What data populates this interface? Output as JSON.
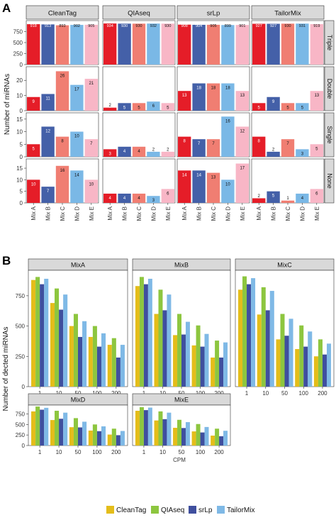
{
  "chart_data": [
    {
      "type": "bar",
      "panel_label": "A",
      "ylabel": "Number of miRNAs",
      "methods": [
        "CleanTag",
        "QIAseq",
        "srLp",
        "TailorMix"
      ],
      "rows": [
        "Triple",
        "Double",
        "Single",
        "None"
      ],
      "categories": [
        "Mix A",
        "Mix B",
        "Mix C",
        "Mix D",
        "Mix E"
      ],
      "category_colors": [
        "#e51d28",
        "#4460a8",
        "#f07e72",
        "#7ab8e6",
        "#f8b6c6"
      ],
      "yticks": {
        "Triple": [
          "0",
          "250",
          "500",
          "750"
        ],
        "Double": [
          "0",
          "10",
          "20"
        ],
        "Single": [
          "0",
          "5",
          "10",
          "15"
        ],
        "None": [
          "0",
          "5",
          "10",
          "15"
        ]
      },
      "ylim": {
        "Triple": [
          0,
          1000
        ],
        "Double": [
          0,
          29
        ],
        "Single": [
          0,
          17.5
        ],
        "None": [
          0,
          19
        ]
      },
      "values": {
        "Triple": {
          "CleanTag": [
            918,
            913,
            893,
            902,
            905
          ],
          "QIAseq": [
            934,
            930,
            930,
            932,
            930
          ],
          "srLp": [
            908,
            904,
            905,
            899,
            901
          ],
          "TailorMix": [
            927,
            927,
            930,
            931,
            919
          ]
        },
        "Double": {
          "CleanTag": [
            9,
            11,
            26,
            17,
            21
          ],
          "QIAseq": [
            2,
            5,
            5,
            6,
            5
          ],
          "srLp": [
            13,
            18,
            18,
            18,
            13
          ],
          "TailorMix": [
            5,
            9,
            5,
            5,
            13
          ]
        },
        "Single": {
          "CleanTag": [
            5,
            12,
            8,
            10,
            7
          ],
          "QIAseq": [
            3,
            4,
            4,
            2,
            2
          ],
          "srLp": [
            8,
            7,
            7,
            16,
            12
          ],
          "TailorMix": [
            8,
            2,
            7,
            3,
            5
          ]
        },
        "None": {
          "CleanTag": [
            10,
            7,
            16,
            14,
            10
          ],
          "QIAseq": [
            4,
            4,
            4,
            3,
            6
          ],
          "srLp": [
            14,
            14,
            13,
            10,
            17
          ],
          "TailorMix": [
            2,
            5,
            1,
            4,
            6
          ]
        }
      }
    },
    {
      "type": "bar",
      "panel_label": "B",
      "ylabel": "Number of dected miRNAs",
      "xlabel": "CPM",
      "mixes": [
        "MixA",
        "MixB",
        "MixC",
        "MixD",
        "MixE"
      ],
      "categories": [
        "1",
        "10",
        "50",
        "100",
        "200"
      ],
      "yticks": [
        "0",
        "250",
        "500",
        "750"
      ],
      "ylim": [
        0,
        960
      ],
      "legend_position": "bottom",
      "series": [
        {
          "name": "CleanTag",
          "color": "#e4bd1a",
          "values": {
            "MixA": [
              880,
              690,
              500,
              410,
              345
            ],
            "MixB": [
              830,
              600,
              425,
              340,
              240
            ],
            "MixC": [
              800,
              595,
              390,
              310,
              250
            ],
            "MixD": [
              810,
              605,
              435,
              355,
              260
            ],
            "MixE": [
              825,
              595,
              420,
              335,
              235
            ]
          }
        },
        {
          "name": "QIAseq",
          "color": "#8dc63f",
          "values": {
            "MixA": [
              905,
              810,
              600,
              500,
              400
            ],
            "MixB": [
              905,
              800,
              600,
              505,
              380
            ],
            "MixC": [
              910,
              820,
              600,
              505,
              390
            ],
            "MixD": [
              925,
              825,
              650,
              500,
              400
            ],
            "MixE": [
              910,
              810,
              610,
              510,
              400
            ]
          }
        },
        {
          "name": "srLp",
          "color": "#3f4f9e",
          "values": {
            "MixA": [
              845,
              635,
              410,
              330,
              240
            ],
            "MixB": [
              845,
              630,
              430,
              330,
              240
            ],
            "MixC": [
              845,
              630,
              420,
              330,
              265
            ],
            "MixD": [
              850,
              635,
              430,
              340,
              245
            ],
            "MixE": [
              840,
              625,
              415,
              310,
              220
            ]
          }
        },
        {
          "name": "TailorMix",
          "color": "#7fb9e6",
          "values": {
            "MixA": [
              890,
              760,
              540,
              440,
              345
            ],
            "MixB": [
              890,
              760,
              535,
              435,
              365
            ],
            "MixC": [
              895,
              790,
              560,
              455,
              355
            ],
            "MixD": [
              895,
              780,
              565,
              455,
              345
            ],
            "MixE": [
              900,
              780,
              555,
              440,
              350
            ]
          }
        }
      ]
    }
  ]
}
